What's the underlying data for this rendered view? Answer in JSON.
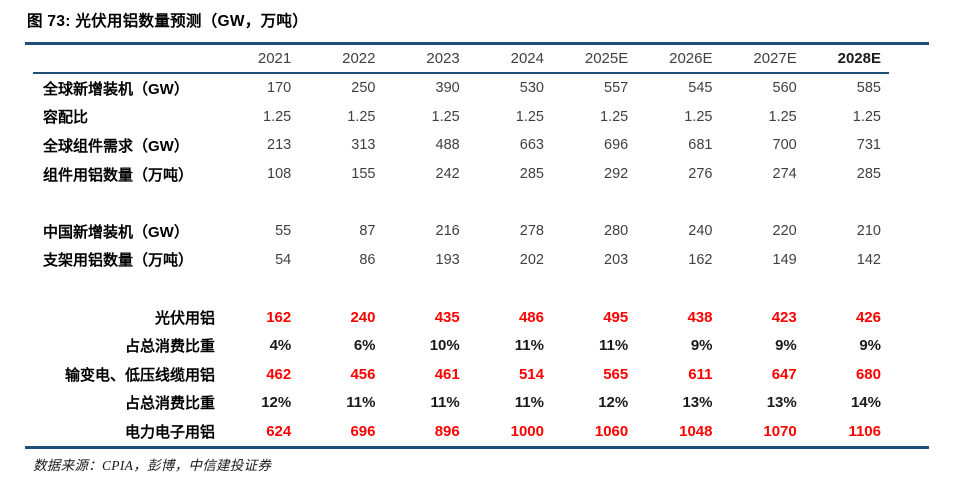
{
  "figure": {
    "title": "图 73: 光伏用铝数量预测（GW，万吨）",
    "source": "数据来源：CPIA，彭博，中信建投证券"
  },
  "colors": {
    "line_navy": "#1F4E79",
    "value_red": "#FF0000",
    "text_gray": "#404040"
  },
  "table": {
    "header": [
      {
        "label": "2021",
        "bold": false
      },
      {
        "label": "2022",
        "bold": false
      },
      {
        "label": "2023",
        "bold": false
      },
      {
        "label": "2024",
        "bold": false
      },
      {
        "label": "2025E",
        "bold": false
      },
      {
        "label": "2026E",
        "bold": false
      },
      {
        "label": "2027E",
        "bold": false
      },
      {
        "label": "2028E",
        "bold": true
      }
    ],
    "rows": [
      {
        "type": "data",
        "label": "全球新增装机（GW）",
        "label_align": "left",
        "value_style": "plain",
        "values": [
          "170",
          "250",
          "390",
          "530",
          "557",
          "545",
          "560",
          "585"
        ]
      },
      {
        "type": "data",
        "label": "容配比",
        "label_align": "left",
        "value_style": "plain",
        "values": [
          "1.25",
          "1.25",
          "1.25",
          "1.25",
          "1.25",
          "1.25",
          "1.25",
          "1.25"
        ]
      },
      {
        "type": "data",
        "label": "全球组件需求（GW）",
        "label_align": "left",
        "value_style": "plain",
        "values": [
          "213",
          "313",
          "488",
          "663",
          "696",
          "681",
          "700",
          "731"
        ]
      },
      {
        "type": "data",
        "label": "组件用铝数量（万吨）",
        "label_align": "left",
        "value_style": "plain",
        "values": [
          "108",
          "155",
          "242",
          "285",
          "292",
          "276",
          "274",
          "285"
        ]
      },
      {
        "type": "spacer"
      },
      {
        "type": "data",
        "label": "中国新增装机（GW）",
        "label_align": "left",
        "value_style": "plain",
        "values": [
          "55",
          "87",
          "216",
          "278",
          "280",
          "240",
          "220",
          "210"
        ]
      },
      {
        "type": "data",
        "label": "支架用铝数量（万吨）",
        "label_align": "left",
        "value_style": "plain",
        "values": [
          "54",
          "86",
          "193",
          "202",
          "203",
          "162",
          "149",
          "142"
        ]
      },
      {
        "type": "spacer"
      },
      {
        "type": "data",
        "label": "光伏用铝",
        "label_align": "right",
        "value_style": "red-bold",
        "values": [
          "162",
          "240",
          "435",
          "486",
          "495",
          "438",
          "423",
          "426"
        ]
      },
      {
        "type": "data",
        "label": "占总消费比重",
        "label_align": "right",
        "value_style": "black-bold",
        "values": [
          "4%",
          "6%",
          "10%",
          "11%",
          "11%",
          "9%",
          "9%",
          "9%"
        ]
      },
      {
        "type": "data",
        "label": "输变电、低压线缆用铝",
        "label_align": "right",
        "value_style": "red-bold",
        "values": [
          "462",
          "456",
          "461",
          "514",
          "565",
          "611",
          "647",
          "680"
        ]
      },
      {
        "type": "data",
        "label": "占总消费比重",
        "label_align": "right",
        "value_style": "black-bold",
        "values": [
          "12%",
          "11%",
          "11%",
          "11%",
          "12%",
          "13%",
          "13%",
          "14%"
        ]
      },
      {
        "type": "data",
        "label": "电力电子用铝",
        "label_align": "right",
        "value_style": "red-bold",
        "values": [
          "624",
          "696",
          "896",
          "1000",
          "1060",
          "1048",
          "1070",
          "1106"
        ]
      }
    ]
  }
}
